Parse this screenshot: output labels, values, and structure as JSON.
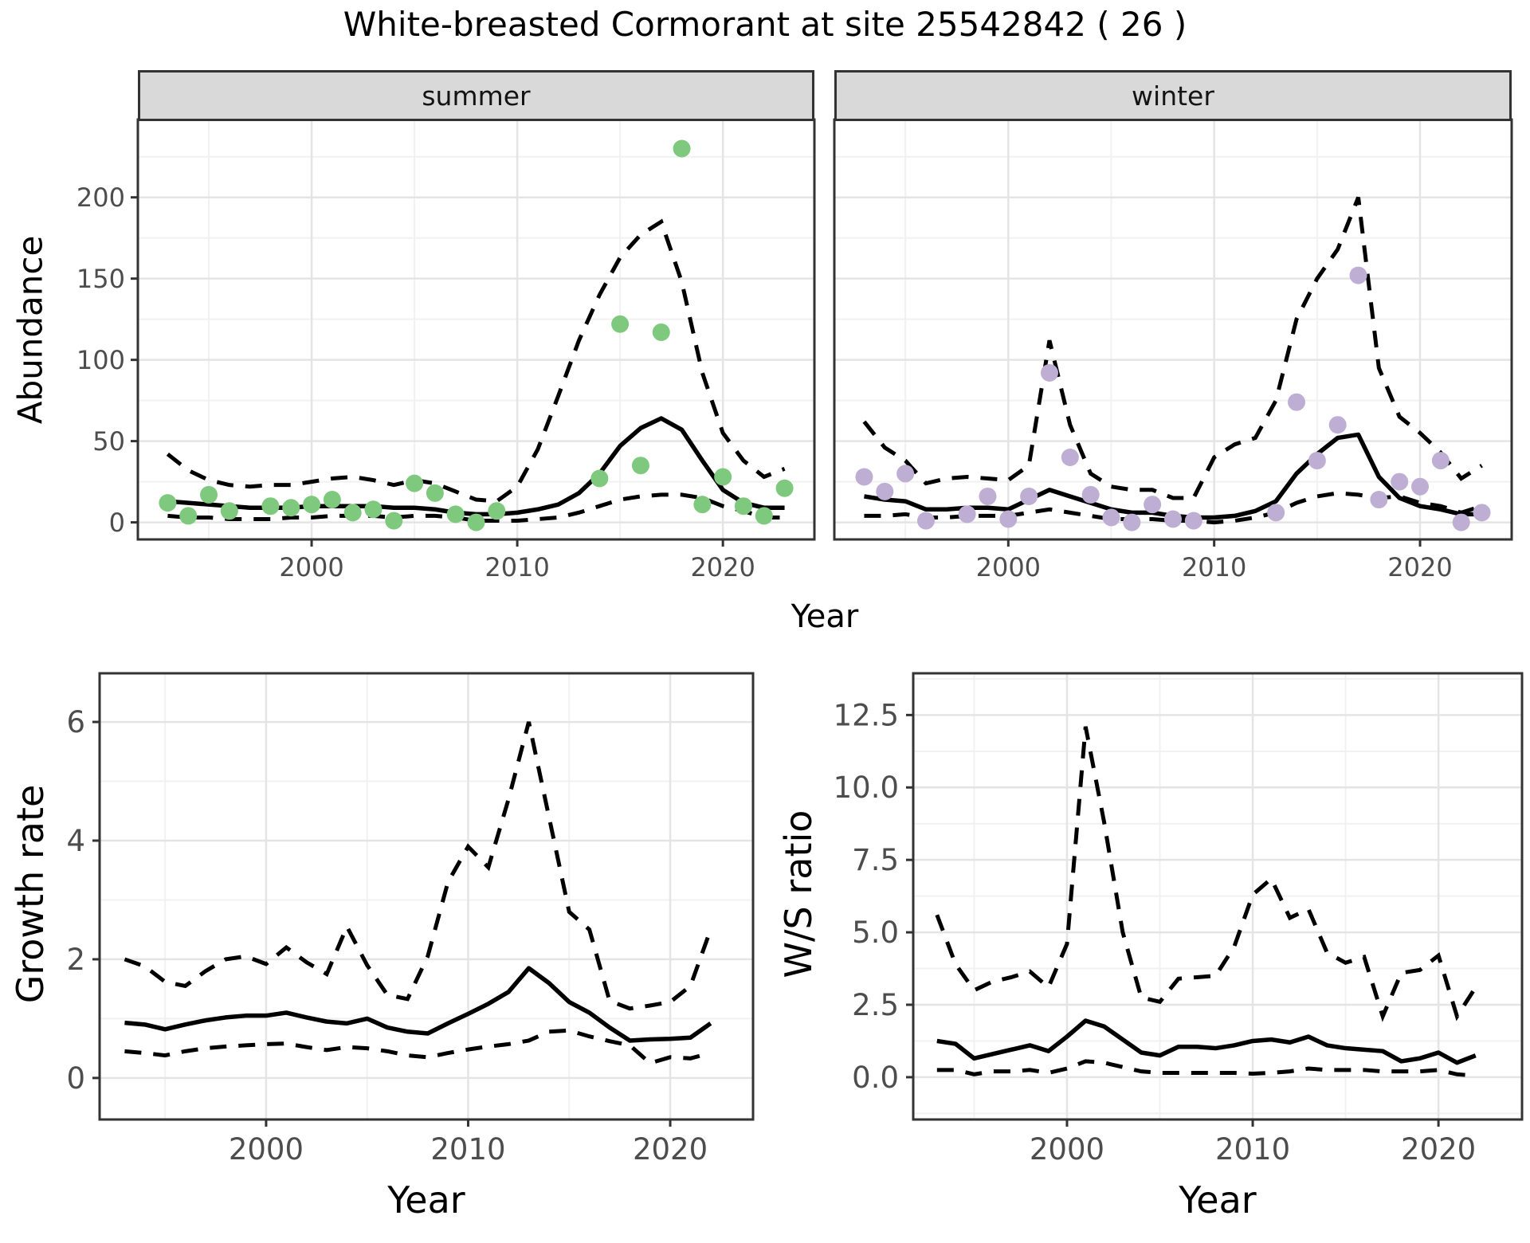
{
  "title": "White-breasted Cormorant at site 25542842 ( 26 )",
  "axes": {
    "abundance": "Abundance",
    "year": "Year",
    "growth": "Growth rate",
    "ws": "W/S ratio"
  },
  "facets": [
    {
      "label": "summer"
    },
    {
      "label": "winter"
    }
  ],
  "colors": {
    "summer_points": "#7FC97F",
    "winter_points": "#BEAED4",
    "line": "#000000",
    "grid_major": "#e4e4e4",
    "grid_minor": "#f1f1f1",
    "panel_border": "#333333",
    "strip_bg": "#d9d9d9",
    "tick_text": "#4d4d4d"
  },
  "chart_data": [
    {
      "id": "abundance-summer",
      "type": "line",
      "facet": "summer",
      "title": "summer",
      "xlabel": "Year",
      "ylabel": "Abundance",
      "xlim": [
        1991.55,
        2024.45
      ],
      "ylim": [
        -10.5,
        247.9
      ],
      "xticks": [
        2000,
        2010,
        2020
      ],
      "xtick_labels": [
        "2000",
        "2010",
        "2020"
      ],
      "yticks": [
        0,
        50,
        100,
        150,
        200
      ],
      "ytick_labels": [
        "0",
        "50",
        "100",
        "150",
        "200"
      ],
      "grid": "on",
      "legend": "none",
      "points": {
        "color": "#7FC97F",
        "x": [
          1993,
          1994,
          1995,
          1996,
          1998,
          1999,
          2000,
          2001,
          2002,
          2003,
          2004,
          2005,
          2006,
          2007,
          2008,
          2009,
          2014,
          2015,
          2016,
          2017,
          2018,
          2019,
          2020,
          2021,
          2022,
          2023
        ],
        "y": [
          12,
          4,
          17,
          7,
          10,
          9,
          11,
          14,
          6,
          8,
          1,
          24,
          18,
          5,
          0,
          7,
          27,
          122,
          35,
          117,
          230,
          11,
          28,
          10,
          4,
          21
        ]
      },
      "median": {
        "x": [
          1993,
          1994,
          1995,
          1996,
          1997,
          1998,
          1999,
          2000,
          2001,
          2002,
          2003,
          2004,
          2005,
          2006,
          2007,
          2008,
          2009,
          2010,
          2011,
          2012,
          2013,
          2014,
          2015,
          2016,
          2017,
          2018,
          2019,
          2020,
          2021,
          2022,
          2023
        ],
        "y": [
          13,
          12,
          11,
          10,
          9,
          9,
          9,
          10,
          10,
          10,
          10,
          9,
          9,
          8,
          6,
          5,
          5,
          6,
          8,
          11,
          18,
          30,
          47,
          58,
          64,
          57,
          38,
          20,
          12,
          9,
          9
        ]
      },
      "upper": {
        "x": [
          1993,
          1994,
          1995,
          1996,
          1997,
          1998,
          1999,
          2000,
          2001,
          2002,
          2003,
          2004,
          2005,
          2006,
          2007,
          2008,
          2009,
          2010,
          2011,
          2012,
          2013,
          2014,
          2015,
          2016,
          2017,
          2018,
          2019,
          2020,
          2021,
          2022,
          2023
        ],
        "y": [
          42,
          32,
          26,
          23,
          22,
          23,
          23,
          25,
          27,
          28,
          26,
          23,
          26,
          24,
          19,
          14,
          13,
          22,
          45,
          78,
          112,
          140,
          163,
          177,
          185,
          148,
          92,
          55,
          38,
          28,
          33
        ]
      },
      "lower": {
        "x": [
          1993,
          1994,
          1995,
          1996,
          1997,
          1998,
          1999,
          2000,
          2001,
          2002,
          2003,
          2004,
          2005,
          2006,
          2007,
          2008,
          2009,
          2010,
          2011,
          2012,
          2013,
          2014,
          2015,
          2016,
          2017,
          2018,
          2019,
          2020,
          2021,
          2022,
          2023
        ],
        "y": [
          4,
          3,
          3,
          2,
          2,
          2,
          3,
          3,
          4,
          4,
          4,
          3,
          4,
          4,
          3,
          1,
          1,
          1,
          2,
          3,
          6,
          10,
          14,
          16,
          17,
          17,
          15,
          10,
          7,
          3,
          3
        ]
      }
    },
    {
      "id": "abundance-winter",
      "type": "line",
      "facet": "winter",
      "title": "winter",
      "xlabel": "Year",
      "ylabel": "Abundance",
      "xlim": [
        1991.55,
        2024.45
      ],
      "ylim": [
        -10.5,
        247.9
      ],
      "xticks": [
        2000,
        2010,
        2020
      ],
      "xtick_labels": [
        "2000",
        "2010",
        "2020"
      ],
      "yticks": [
        0,
        50,
        100,
        150,
        200
      ],
      "ytick_labels": [
        "0",
        "50",
        "100",
        "150",
        "200"
      ],
      "grid": "on",
      "legend": "none",
      "points": {
        "color": "#BEAED4",
        "x": [
          1993,
          1994,
          1995,
          1996,
          1998,
          1999,
          2000,
          2001,
          2002,
          2003,
          2004,
          2005,
          2006,
          2007,
          2008,
          2009,
          2013,
          2014,
          2015,
          2016,
          2017,
          2018,
          2019,
          2020,
          2021,
          2022,
          2023
        ],
        "y": [
          28,
          19,
          30,
          1,
          5,
          16,
          2,
          16,
          92,
          40,
          17,
          3,
          0,
          11,
          2,
          1,
          6,
          74,
          38,
          60,
          152,
          14,
          25,
          22,
          38,
          0,
          6
        ]
      },
      "median": {
        "x": [
          1993,
          1994,
          1995,
          1996,
          1997,
          1998,
          1999,
          2000,
          2001,
          2002,
          2003,
          2004,
          2005,
          2006,
          2007,
          2008,
          2009,
          2010,
          2011,
          2012,
          2013,
          2014,
          2015,
          2016,
          2017,
          2018,
          2019,
          2020,
          2021,
          2022,
          2023
        ],
        "y": [
          16,
          14,
          13,
          8,
          8,
          9,
          9,
          8,
          14,
          20,
          16,
          12,
          8,
          6,
          6,
          4,
          3,
          3,
          4,
          7,
          13,
          30,
          42,
          52,
          54,
          28,
          15,
          10,
          8,
          5,
          5
        ]
      },
      "upper": {
        "x": [
          1993,
          1994,
          1995,
          1996,
          1997,
          1998,
          1999,
          2000,
          2001,
          2002,
          2003,
          2004,
          2005,
          2006,
          2007,
          2008,
          2009,
          2010,
          2011,
          2012,
          2013,
          2014,
          2015,
          2016,
          2017,
          2018,
          2019,
          2020,
          2021,
          2022,
          2023
        ],
        "y": [
          62,
          46,
          38,
          24,
          27,
          28,
          27,
          26,
          35,
          112,
          60,
          30,
          22,
          20,
          20,
          15,
          15,
          40,
          48,
          52,
          75,
          125,
          150,
          168,
          200,
          95,
          65,
          55,
          43,
          27,
          35
        ]
      },
      "lower": {
        "x": [
          1993,
          1994,
          1995,
          1996,
          1997,
          1998,
          1999,
          2000,
          2001,
          2002,
          2003,
          2004,
          2005,
          2006,
          2007,
          2008,
          2009,
          2010,
          2011,
          2012,
          2013,
          2014,
          2015,
          2016,
          2017,
          2018,
          2019,
          2020,
          2021,
          2022,
          2023
        ],
        "y": [
          4,
          4,
          5,
          3,
          3,
          4,
          4,
          4,
          6,
          8,
          6,
          4,
          2,
          2,
          2,
          1,
          1,
          0,
          1,
          3,
          6,
          12,
          16,
          18,
          17,
          15,
          16,
          12,
          10,
          6,
          10
        ]
      }
    },
    {
      "id": "growth-rate",
      "type": "line",
      "title": "Growth rate",
      "xlabel": "Year",
      "ylabel": "Growth rate",
      "xlim": [
        1991.76,
        2024.1
      ],
      "ylim": [
        -0.7,
        6.82
      ],
      "xticks": [
        2000,
        2010,
        2020
      ],
      "xtick_labels": [
        "2000",
        "2010",
        "2020"
      ],
      "yticks": [
        0,
        2,
        4,
        6
      ],
      "ytick_labels": [
        "0",
        "2",
        "4",
        "6"
      ],
      "grid": "on",
      "legend": "none",
      "median": {
        "x": [
          1993,
          1994,
          1995,
          1996,
          1997,
          1998,
          1999,
          2000,
          2001,
          2002,
          2003,
          2004,
          2005,
          2006,
          2007,
          2008,
          2009,
          2010,
          2011,
          2012,
          2013,
          2014,
          2015,
          2016,
          2017,
          2018,
          2019,
          2020,
          2021,
          2022
        ],
        "y": [
          0.93,
          0.9,
          0.82,
          0.9,
          0.97,
          1.02,
          1.05,
          1.05,
          1.1,
          1.02,
          0.95,
          0.92,
          1.0,
          0.85,
          0.78,
          0.75,
          0.92,
          1.08,
          1.25,
          1.45,
          1.85,
          1.6,
          1.28,
          1.1,
          0.85,
          0.63,
          0.65,
          0.66,
          0.68,
          0.92
        ]
      },
      "upper": {
        "x": [
          1993,
          1994,
          1995,
          1996,
          1997,
          1998,
          1999,
          2000,
          2001,
          2002,
          2003,
          2004,
          2005,
          2006,
          2007,
          2008,
          2009,
          2010,
          2011,
          2012,
          2013,
          2014,
          2015,
          2016,
          2017,
          2018,
          2019,
          2020,
          2021,
          2022
        ],
        "y": [
          2.0,
          1.88,
          1.62,
          1.55,
          1.8,
          2.0,
          2.05,
          1.92,
          2.2,
          1.95,
          1.75,
          2.55,
          1.9,
          1.4,
          1.33,
          2.05,
          3.3,
          3.9,
          3.55,
          4.7,
          6.0,
          4.4,
          2.8,
          2.5,
          1.3,
          1.17,
          1.22,
          1.28,
          1.55,
          2.5
        ]
      },
      "lower": {
        "x": [
          1993,
          1994,
          1995,
          1996,
          1997,
          1998,
          1999,
          2000,
          2001,
          2002,
          2003,
          2004,
          2005,
          2006,
          2007,
          2008,
          2009,
          2010,
          2011,
          2012,
          2013,
          2014,
          2015,
          2016,
          2017,
          2018,
          2019,
          2020,
          2021,
          2022
        ],
        "y": [
          0.45,
          0.42,
          0.38,
          0.45,
          0.5,
          0.53,
          0.55,
          0.57,
          0.58,
          0.52,
          0.47,
          0.52,
          0.5,
          0.45,
          0.38,
          0.35,
          0.42,
          0.48,
          0.53,
          0.57,
          0.63,
          0.78,
          0.8,
          0.7,
          0.62,
          0.55,
          0.25,
          0.35,
          0.33,
          0.42
        ]
      }
    },
    {
      "id": "ws-ratio",
      "type": "line",
      "title": "W/S ratio",
      "xlabel": "Year",
      "ylabel": "W/S ratio",
      "xlim": [
        1991.72,
        2024.5
      ],
      "ylim": [
        -1.46,
        13.94
      ],
      "xticks": [
        2000,
        2010,
        2020
      ],
      "xtick_labels": [
        "2000",
        "2010",
        "2020"
      ],
      "yticks": [
        0,
        2.5,
        5,
        7.5,
        10,
        12.5
      ],
      "ytick_labels": [
        "0.0",
        "2.5",
        "5.0",
        "7.5",
        "10.0",
        "12.5"
      ],
      "grid": "on",
      "legend": "none",
      "median": {
        "x": [
          1993,
          1994,
          1995,
          1996,
          1997,
          1998,
          1999,
          2000,
          2001,
          2002,
          2003,
          2004,
          2005,
          2006,
          2007,
          2008,
          2009,
          2010,
          2011,
          2012,
          2013,
          2014,
          2015,
          2016,
          2017,
          2018,
          2019,
          2020,
          2021,
          2022
        ],
        "y": [
          1.25,
          1.15,
          0.65,
          0.8,
          0.95,
          1.1,
          0.9,
          1.4,
          1.95,
          1.75,
          1.3,
          0.85,
          0.75,
          1.05,
          1.05,
          1.0,
          1.1,
          1.25,
          1.3,
          1.2,
          1.4,
          1.1,
          1.0,
          0.95,
          0.9,
          0.55,
          0.65,
          0.85,
          0.5,
          0.75
        ]
      },
      "upper": {
        "x": [
          1993,
          1994,
          1995,
          1996,
          1997,
          1998,
          1999,
          2000,
          2001,
          2002,
          2003,
          2004,
          2005,
          2006,
          2007,
          2008,
          2009,
          2010,
          2011,
          2012,
          2013,
          2014,
          2015,
          2016,
          2017,
          2018,
          2019,
          2020,
          2021,
          2022
        ],
        "y": [
          5.6,
          3.9,
          3.0,
          3.3,
          3.45,
          3.65,
          3.1,
          4.6,
          12.1,
          8.8,
          5.0,
          2.75,
          2.6,
          3.4,
          3.45,
          3.5,
          4.5,
          6.3,
          6.85,
          5.5,
          5.8,
          4.3,
          3.95,
          4.15,
          2.1,
          3.6,
          3.7,
          4.2,
          2.1,
          3.1
        ]
      },
      "lower": {
        "x": [
          1993,
          1994,
          1995,
          1996,
          1997,
          1998,
          1999,
          2000,
          2001,
          2002,
          2003,
          2004,
          2005,
          2006,
          2007,
          2008,
          2009,
          2010,
          2011,
          2012,
          2013,
          2014,
          2015,
          2016,
          2017,
          2018,
          2019,
          2020,
          2021,
          2022
        ],
        "y": [
          0.25,
          0.25,
          0.1,
          0.2,
          0.2,
          0.25,
          0.15,
          0.3,
          0.55,
          0.5,
          0.35,
          0.2,
          0.15,
          0.15,
          0.15,
          0.15,
          0.15,
          0.12,
          0.15,
          0.2,
          0.3,
          0.25,
          0.25,
          0.25,
          0.2,
          0.2,
          0.2,
          0.25,
          0.1,
          0.05
        ]
      }
    }
  ]
}
